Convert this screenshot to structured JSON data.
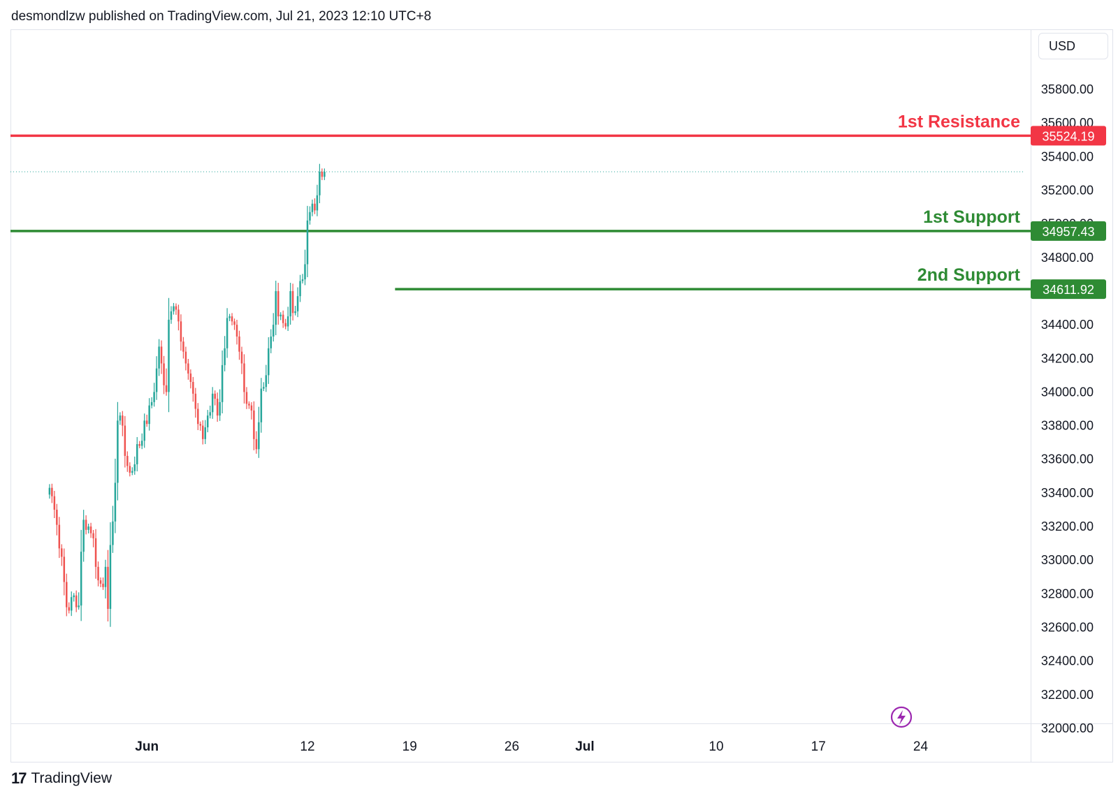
{
  "header": {
    "text": "desmondlzw published on TradingView.com, Jul 21, 2023 12:10 UTC+8"
  },
  "currency_button": {
    "label": "USD"
  },
  "footer": {
    "logo": "17",
    "brand": "TradingView"
  },
  "colors": {
    "up": "#26a69a",
    "down": "#ef5350",
    "resistance": "#f23645",
    "support": "#2e8b34",
    "text": "#131722"
  },
  "icons": {
    "replay": "lightning-icon"
  },
  "chart_data": {
    "type": "candlestick",
    "y_axis": {
      "range": [
        32000,
        36000
      ],
      "ticks": [
        32000,
        32200,
        32400,
        32600,
        32800,
        33000,
        33200,
        33400,
        33600,
        33800,
        34000,
        34200,
        34400,
        34600,
        34800,
        35000,
        35200,
        35400,
        35600,
        35800
      ],
      "tick_labels": [
        "32000.00",
        "32200.00",
        "32400.00",
        "32600.00",
        "32800.00",
        "33000.00",
        "33200.00",
        "33400.00",
        "33600.00",
        "33800.00",
        "34000.00",
        "34200.00",
        "34400.00",
        "34600.00",
        "34800.00",
        "35000.00",
        "35200.00",
        "35400.00",
        "35600.00",
        "35800.00"
      ]
    },
    "x_axis": {
      "labels": [
        {
          "text": "Jun",
          "date": "2023-06-01",
          "bold": true
        },
        {
          "text": "12",
          "date": "2023-06-12"
        },
        {
          "text": "19",
          "date": "2023-06-19"
        },
        {
          "text": "26",
          "date": "2023-06-26"
        },
        {
          "text": "Jul",
          "date": "2023-07-01",
          "bold": true
        },
        {
          "text": "10",
          "date": "2023-07-10"
        },
        {
          "text": "17",
          "date": "2023-07-17"
        },
        {
          "text": "24",
          "date": "2023-07-24"
        }
      ]
    },
    "levels": [
      {
        "label": "1st Resistance",
        "value": 35524.19,
        "value_label": "35524.19",
        "color": "#f23645",
        "start_date": null
      },
      {
        "label": "1st Support",
        "value": 34957.43,
        "value_label": "34957.43",
        "color": "#2e8b34",
        "start_date": null
      },
      {
        "label": "2nd Support",
        "value": 34611.92,
        "value_label": "34611.92",
        "color": "#2e8b34",
        "start_date": "2023-06-18"
      }
    ],
    "last_price": 35310,
    "series": [
      {
        "name": "",
        "start": "2023-05-25 08:00",
        "interval_hours": 4,
        "closes": [
          33430,
          33380,
          33300,
          33210,
          33070,
          33020,
          32870,
          32720,
          32700,
          32780,
          32790,
          32720,
          32730,
          33050,
          33240,
          33180,
          33200,
          33160,
          33130,
          32960,
          32880,
          32860,
          32840,
          32960,
          32710,
          33090,
          33230,
          33460,
          33830,
          33860,
          33800,
          33620,
          33560,
          33520,
          33530,
          33570,
          33690,
          33680,
          33710,
          33830,
          33810,
          33920,
          33940,
          34000,
          34140,
          34270,
          34170,
          34040,
          34000,
          34430,
          34480,
          34510,
          34490,
          34420,
          34300,
          34240,
          34170,
          34110,
          34060,
          33990,
          33900,
          33810,
          33800,
          33720,
          33790,
          33860,
          33880,
          33990,
          33960,
          33860,
          33940,
          34160,
          34260,
          34440,
          34450,
          34420,
          34400,
          34330,
          34240,
          34170,
          34000,
          33930,
          33920,
          33890,
          33720,
          33660,
          33820,
          34020,
          34030,
          34100,
          34260,
          34330,
          34400,
          34600,
          34450,
          34460,
          34410,
          34390,
          34450,
          34600,
          34470,
          34480,
          34570,
          34660,
          34670,
          34760,
          35020,
          35070,
          35120,
          35080,
          35170,
          35310,
          35280,
          35310
        ]
      }
    ]
  }
}
